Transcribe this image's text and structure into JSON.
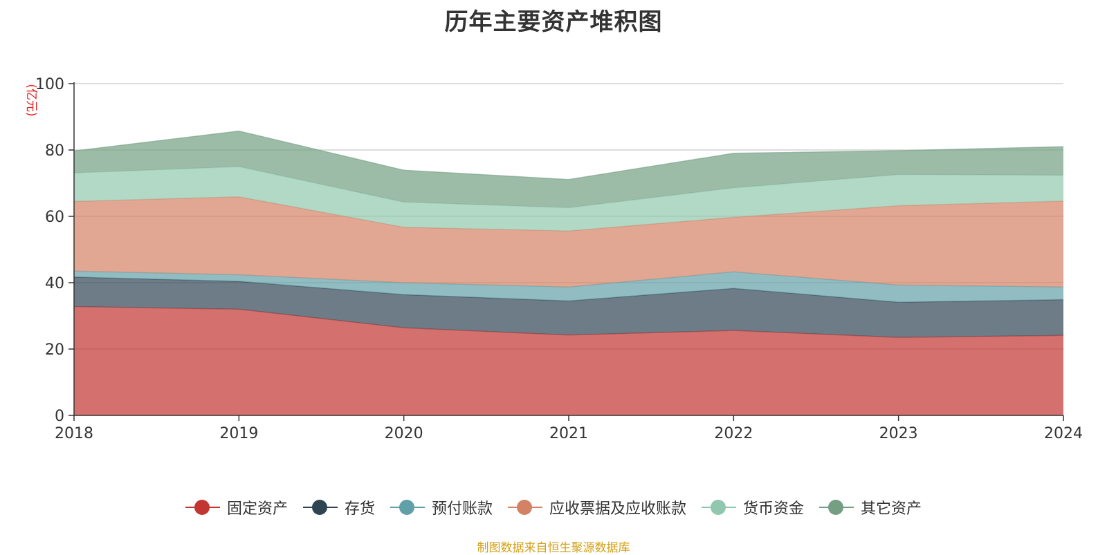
{
  "chart_data": {
    "type": "area",
    "title": "历年主要资产堆积图",
    "ylabel": "(亿元)",
    "xlabel": "",
    "categories": [
      "2018",
      "2019",
      "2020",
      "2021",
      "2022",
      "2023",
      "2024"
    ],
    "ylim": [
      0,
      100
    ],
    "yticks": [
      "0",
      "20",
      "40",
      "60",
      "80",
      "100"
    ],
    "stacked": true,
    "grid": true,
    "legend_position": "bottom",
    "series": [
      {
        "name": "固定资产",
        "color": "#c23531",
        "values": [
          32.8,
          32.0,
          26.4,
          24.2,
          25.6,
          23.5,
          24.1
        ]
      },
      {
        "name": "存货",
        "color": "#2f4554",
        "values": [
          8.9,
          8.4,
          10.0,
          10.3,
          12.7,
          10.6,
          10.8
        ]
      },
      {
        "name": "预付账款",
        "color": "#61a0a8",
        "values": [
          1.8,
          2.0,
          3.6,
          4.2,
          5.0,
          5.2,
          3.8
        ]
      },
      {
        "name": "应收票据及应收账款",
        "color": "#d48265",
        "values": [
          21.0,
          23.5,
          16.7,
          16.9,
          16.4,
          23.9,
          25.9
        ]
      },
      {
        "name": "货币资金",
        "color": "#91c7ae",
        "values": [
          8.6,
          9.1,
          7.6,
          7.0,
          8.9,
          9.4,
          7.8
        ]
      },
      {
        "name": "其它资产",
        "color": "#749f83",
        "values": [
          6.6,
          10.7,
          9.6,
          8.5,
          10.4,
          7.2,
          8.6
        ]
      }
    ]
  },
  "footer": {
    "source": "制图数据来自恒生聚源数据库",
    "source_color": "#d4a017"
  }
}
